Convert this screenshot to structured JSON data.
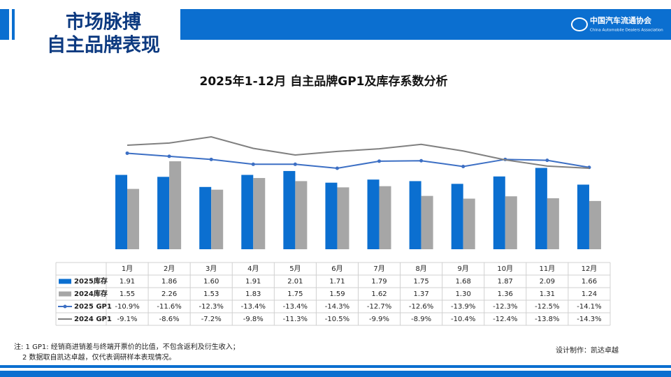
{
  "header": {
    "title_line1": "市场脉搏",
    "title_line2": "自主品牌表现",
    "org_cn": "中国汽车流通协会",
    "org_en": "China Automobile Dealers Association"
  },
  "chart_data": {
    "type": "bar",
    "title": "2025年1-12月 自主品牌GP1及库存系数分析",
    "categories": [
      "1月",
      "2月",
      "3月",
      "4月",
      "5月",
      "6月",
      "7月",
      "8月",
      "9月",
      "10月",
      "11月",
      "12月"
    ],
    "series": [
      {
        "name": "2025库存",
        "type": "bar",
        "color": "#0b6fd0",
        "values": [
          1.91,
          1.86,
          1.6,
          1.91,
          2.01,
          1.71,
          1.79,
          1.75,
          1.68,
          1.87,
          2.09,
          1.66
        ],
        "value_labels": [
          "1.91",
          "1.86",
          "1.60",
          "1.91",
          "2.01",
          "1.71",
          "1.79",
          "1.75",
          "1.68",
          "1.87",
          "2.09",
          "1.66"
        ]
      },
      {
        "name": "2024库存",
        "type": "bar",
        "color": "#a6a6a6",
        "values": [
          1.55,
          2.26,
          1.53,
          1.83,
          1.75,
          1.59,
          1.62,
          1.37,
          1.3,
          1.36,
          1.31,
          1.24
        ],
        "value_labels": [
          "1.55",
          "2.26",
          "1.53",
          "1.83",
          "1.75",
          "1.59",
          "1.62",
          "1.37",
          "1.30",
          "1.36",
          "1.31",
          "1.24"
        ]
      },
      {
        "name": "2025 GP1",
        "type": "line",
        "axis": "y2",
        "color": "#3c6fc4",
        "values": [
          -10.9,
          -11.6,
          -12.3,
          -13.4,
          -13.4,
          -14.3,
          -12.7,
          -12.6,
          -13.9,
          -12.3,
          -12.5,
          -14.1
        ],
        "value_labels": [
          "-10.9%",
          "-11.6%",
          "-12.3%",
          "-13.4%",
          "-13.4%",
          "-14.3%",
          "-12.7%",
          "-12.6%",
          "-13.9%",
          "-12.3%",
          "-12.5%",
          "-14.1%"
        ]
      },
      {
        "name": "2024 GP1",
        "type": "line",
        "axis": "y2",
        "color": "#808080",
        "values": [
          -9.1,
          -8.6,
          -7.2,
          -9.8,
          -11.3,
          -10.5,
          -9.9,
          -8.9,
          -10.4,
          -12.4,
          -13.8,
          -14.3
        ],
        "value_labels": [
          "-9.1%",
          "-8.6%",
          "-7.2%",
          "-9.8%",
          "-11.3%",
          "-10.5%",
          "-9.9%",
          "-8.9%",
          "-10.4%",
          "-12.4%",
          "-13.8%",
          "-14.3%"
        ]
      }
    ]
  },
  "notes": {
    "line1": "注: 1  GP1: 经销商进销差与终端开票价的比值，不包含返利及衍生收入；",
    "line2": "2 数据取自凯达卓越，仅代表调研样本表现情况。",
    "credit": "设计制作：凯达卓越"
  }
}
